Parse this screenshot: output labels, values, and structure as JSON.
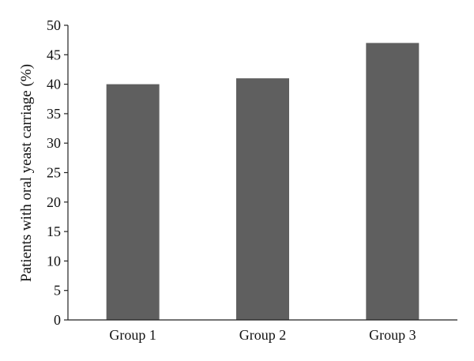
{
  "chart_data": {
    "type": "bar",
    "title": "",
    "xlabel": "",
    "ylabel": "Patients with oral yeast carriage (%)",
    "categories": [
      "Group 1",
      "Group 2",
      "Group 3"
    ],
    "values": [
      40,
      41,
      47
    ],
    "ylim": [
      0,
      50
    ],
    "yticks": [
      0,
      5,
      10,
      15,
      20,
      25,
      30,
      35,
      40,
      45,
      50
    ],
    "grid": false,
    "legend": "none",
    "bar_color": "#5f5f5f"
  }
}
